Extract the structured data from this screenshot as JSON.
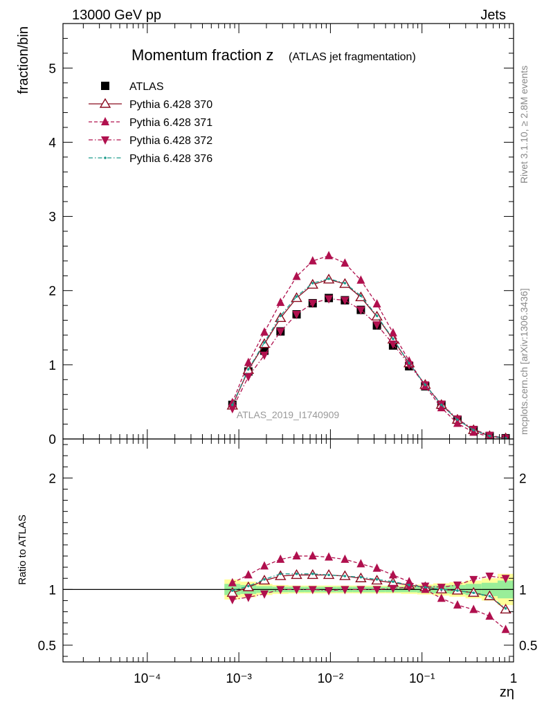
{
  "header": {
    "energy_label": "13000 GeV pp",
    "process_label": "Jets",
    "side_label_rivet": "Rivet 3.1.10, ≥ 2.8M events",
    "side_label_site": "mcplots.cern.ch [arXiv:1306.3436]",
    "watermark": "ATLAS_2019_I1740909"
  },
  "chart_data": [
    {
      "type": "line",
      "title": "Momentum fraction z",
      "subtitle": "(ATLAS jet fragmentation)",
      "xlabel": "zη",
      "ylabel": "fraction/bin",
      "xscale": "log",
      "xlim": [
        1.2e-05,
        1
      ],
      "ylim": [
        0,
        5.6
      ],
      "x_tick_labels": [
        "10⁻⁴",
        "10⁻³",
        "10⁻²",
        "10⁻¹",
        "1"
      ],
      "y_tick_labels": [
        "0",
        "1",
        "2",
        "3",
        "4",
        "5"
      ],
      "legend_position": "top-left",
      "x": [
        0.00085,
        0.00127,
        0.0019,
        0.00285,
        0.00427,
        0.0064,
        0.0096,
        0.0144,
        0.0215,
        0.0322,
        0.0483,
        0.0724,
        0.1085,
        0.163,
        0.244,
        0.366,
        0.548,
        0.82
      ],
      "series": [
        {
          "name": "ATLAS",
          "color": "#000000",
          "marker": "square",
          "values": [
            0.46,
            0.91,
            1.19,
            1.45,
            1.68,
            1.83,
            1.9,
            1.87,
            1.74,
            1.53,
            1.26,
            0.98,
            0.71,
            0.46,
            0.26,
            0.12,
            0.04,
            0.01
          ]
        },
        {
          "name": "Pythia 6.428 370",
          "color": "#8b0a1f",
          "marker": "triangle-open",
          "dash": "solid",
          "values": [
            0.45,
            0.93,
            1.28,
            1.63,
            1.9,
            2.08,
            2.15,
            2.09,
            1.91,
            1.65,
            1.34,
            1.02,
            0.73,
            0.46,
            0.26,
            0.12,
            0.04,
            0.01
          ]
        },
        {
          "name": "Pythia 6.428 371",
          "color": "#b0104e",
          "marker": "triangle-up",
          "dash": "dashed",
          "values": [
            0.49,
            1.03,
            1.44,
            1.84,
            2.19,
            2.4,
            2.47,
            2.37,
            2.14,
            1.82,
            1.43,
            1.05,
            0.71,
            0.42,
            0.21,
            0.09,
            0.03,
            0.01
          ]
        },
        {
          "name": "Pythia 6.428 372",
          "color": "#b0104e",
          "marker": "triangle-down",
          "dash": "dash-dot",
          "values": [
            0.41,
            0.84,
            1.13,
            1.45,
            1.68,
            1.83,
            1.89,
            1.87,
            1.74,
            1.54,
            1.28,
            1.0,
            0.73,
            0.47,
            0.27,
            0.13,
            0.05,
            0.01
          ]
        },
        {
          "name": "Pythia 6.428 376",
          "color": "#1a9a8a",
          "marker": "dot",
          "dash": "dash-dot",
          "values": [
            0.46,
            0.94,
            1.3,
            1.66,
            1.92,
            2.1,
            2.16,
            2.1,
            1.93,
            1.66,
            1.35,
            1.02,
            0.73,
            0.46,
            0.26,
            0.12,
            0.04,
            0.01
          ]
        }
      ]
    },
    {
      "type": "line",
      "ylabel": "Ratio to ATLAS",
      "xlabel": "zη",
      "xscale": "log",
      "xlim": [
        1.2e-05,
        1
      ],
      "ylim": [
        0.35,
        2.35
      ],
      "y_tick_labels": [
        "0.5",
        "1",
        "2"
      ],
      "x": [
        0.00085,
        0.00127,
        0.0019,
        0.00285,
        0.00427,
        0.0064,
        0.0096,
        0.0144,
        0.0215,
        0.0322,
        0.0483,
        0.0724,
        0.1085,
        0.163,
        0.244,
        0.366,
        0.548,
        0.82
      ],
      "band_inner": [
        0.05,
        0.04,
        0.03,
        0.025,
        0.025,
        0.025,
        0.025,
        0.025,
        0.025,
        0.025,
        0.025,
        0.025,
        0.03,
        0.035,
        0.04,
        0.05,
        0.06,
        0.08
      ],
      "band_outer": [
        0.09,
        0.07,
        0.05,
        0.04,
        0.035,
        0.035,
        0.035,
        0.035,
        0.035,
        0.035,
        0.035,
        0.04,
        0.045,
        0.055,
        0.065,
        0.08,
        0.1,
        0.14
      ],
      "series": [
        {
          "name": "Pythia 6.428 370",
          "color": "#8b0a1f",
          "marker": "triangle-open",
          "dash": "solid",
          "values": [
            0.97,
            1.02,
            1.08,
            1.12,
            1.13,
            1.13,
            1.13,
            1.12,
            1.1,
            1.08,
            1.06,
            1.04,
            1.02,
            1.0,
            0.99,
            0.97,
            0.94,
            0.82
          ]
        },
        {
          "name": "Pythia 6.428 371",
          "color": "#b0104e",
          "marker": "triangle-up",
          "dash": "dashed",
          "values": [
            1.06,
            1.13,
            1.21,
            1.27,
            1.3,
            1.3,
            1.29,
            1.27,
            1.23,
            1.19,
            1.13,
            1.07,
            1.0,
            0.92,
            0.86,
            0.82,
            0.76,
            0.64
          ]
        },
        {
          "name": "Pythia 6.428 372",
          "color": "#b0104e",
          "marker": "triangle-down",
          "dash": "dash-dot",
          "values": [
            0.91,
            0.93,
            0.96,
            1.0,
            1.0,
            1.0,
            0.99,
            1.0,
            1.0,
            1.0,
            1.01,
            1.02,
            1.03,
            1.02,
            1.04,
            1.09,
            1.12,
            1.1
          ]
        },
        {
          "name": "Pythia 6.428 376",
          "color": "#1a9a8a",
          "marker": "dot",
          "dash": "dash-dot",
          "values": [
            0.99,
            1.03,
            1.09,
            1.14,
            1.14,
            1.14,
            1.13,
            1.12,
            1.11,
            1.09,
            1.07,
            1.04,
            1.02,
            1.0,
            0.99,
            0.97,
            0.94,
            0.83
          ]
        }
      ]
    }
  ]
}
